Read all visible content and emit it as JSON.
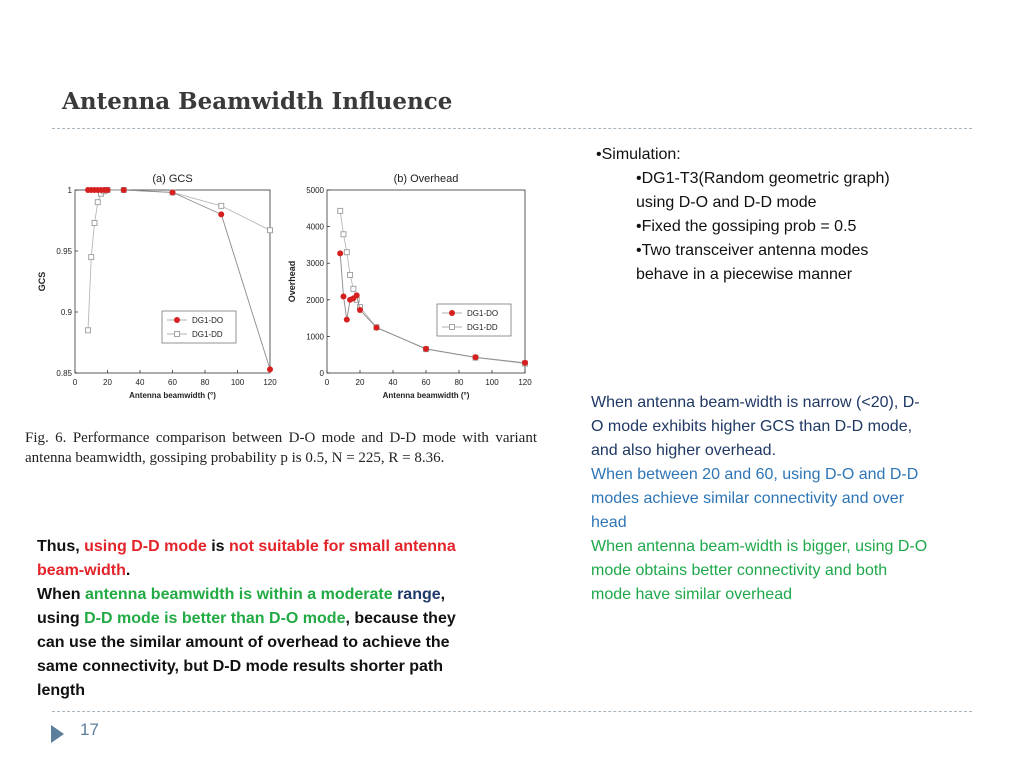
{
  "slide": {
    "title": "Antenna Beamwidth Influence",
    "page_number": "17"
  },
  "figure": {
    "caption": "Fig. 6.    Performance comparison between D-O mode and D-D mode with variant antenna beamwidth, gossiping probability p is 0.5, N = 225, R = 8.36."
  },
  "bullets": {
    "top": "•Simulation:",
    "items": [
      "•DG1-T3(Random geometric graph) using D-O and D-D mode",
      "•Fixed the gossiping prob = 0.5",
      "•Two transceiver antenna modes behave in a piecewise manner"
    ]
  },
  "explanation": {
    "p1": "When antenna beam-width is narrow (<20), D-O mode exhibits higher GCS than D-D mode, and also higher overhead.",
    "p2": "When between 20 and 60, using D-O and D-D modes achieve similar connectivity  and over head",
    "p3": "When antenna beam-width is bigger, using D-O mode obtains better connectivity and both mode have similar overhead"
  },
  "conclusion": {
    "s1": "Thus, ",
    "s2": "using D-D mode",
    "s3": " is ",
    "s4": "not suitable for small antenna beam-width",
    "s5": ".",
    "s6": "When ",
    "s7": "antenna beamwidth is within a moderate ",
    "s8": "range",
    "s9": ", using ",
    "s10": "D-D mode is better than D-O mode",
    "s11": ", because they can use the similar amount of overhead to achieve the same connectivity, but D-D mode results shorter path length"
  },
  "chart_data": [
    {
      "type": "line",
      "title": "(a) GCS",
      "xlabel": "Antenna beamwidth (°)",
      "ylabel": "GCS",
      "xlim": [
        0,
        120
      ],
      "ylim": [
        0.85,
        1.0
      ],
      "xticks": [
        "0",
        "20",
        "40",
        "60",
        "80",
        "100",
        "120"
      ],
      "yticks": [
        "0.85",
        "0.9",
        "0.95",
        "1"
      ],
      "legend_position": "bottom-right",
      "grid": false,
      "series": [
        {
          "name": "DG1-DO",
          "marker": "filled-circle",
          "color": "#d62020",
          "x": [
            8,
            10,
            12,
            14,
            16,
            18,
            20,
            30,
            60,
            90,
            120
          ],
          "y": [
            1.0,
            1.0,
            1.0,
            1.0,
            1.0,
            1.0,
            1.0,
            1.0,
            0.998,
            0.98,
            0.853
          ]
        },
        {
          "name": "DG1-DD",
          "marker": "open-square",
          "color": "#9a9a9a",
          "x": [
            8,
            10,
            12,
            14,
            16,
            18,
            20,
            30,
            60,
            90,
            120
          ],
          "y": [
            0.885,
            0.945,
            0.973,
            0.99,
            0.997,
            0.999,
            1.0,
            1.0,
            0.998,
            0.987,
            0.967
          ]
        }
      ]
    },
    {
      "type": "line",
      "title": "(b) Overhead",
      "xlabel": "Antenna beamwidth (°)",
      "ylabel": "Overhead",
      "xlim": [
        0,
        120
      ],
      "ylim": [
        0,
        5000
      ],
      "xticks": [
        "0",
        "20",
        "40",
        "60",
        "80",
        "100",
        "120"
      ],
      "yticks": [
        "0",
        "1000",
        "2000",
        "3000",
        "4000",
        "5000"
      ],
      "legend_position": "right",
      "grid": false,
      "series": [
        {
          "name": "DG1-DO",
          "marker": "filled-circle",
          "color": "#d62020",
          "x": [
            8,
            10,
            12,
            14,
            16,
            18,
            20,
            30,
            60,
            90,
            120
          ],
          "y": [
            3270,
            2090,
            1460,
            2000,
            2040,
            2120,
            1720,
            1240,
            660,
            430,
            280
          ]
        },
        {
          "name": "DG1-DD",
          "marker": "open-square",
          "color": "#9a9a9a",
          "x": [
            8,
            10,
            12,
            14,
            16,
            18,
            20,
            30,
            60,
            90,
            120
          ],
          "y": [
            4430,
            3790,
            3300,
            2680,
            2300,
            2000,
            1800,
            1250,
            650,
            420,
            260
          ]
        }
      ]
    }
  ]
}
